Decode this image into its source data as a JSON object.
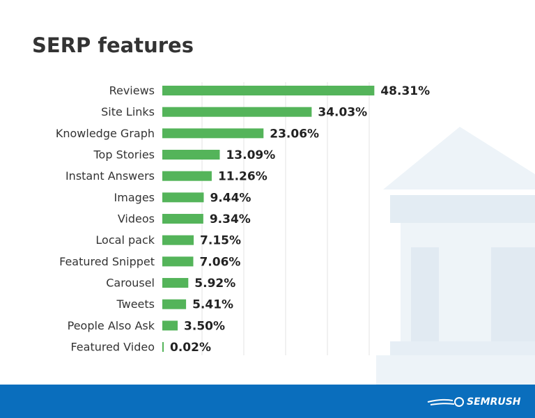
{
  "chart_data": {
    "type": "bar",
    "orientation": "horizontal",
    "title": "SERP features",
    "categories": [
      "Reviews",
      "Site Links",
      "Knowledge Graph",
      "Top Stories",
      "Instant Answers",
      "Images",
      "Videos",
      "Local pack",
      "Featured Snippet",
      "Carousel",
      "Tweets",
      "People Also Ask",
      "Featured Video"
    ],
    "values": [
      48.31,
      34.03,
      23.06,
      13.09,
      11.26,
      9.44,
      9.34,
      7.15,
      7.06,
      5.92,
      5.41,
      3.5,
      0.02
    ],
    "value_labels": [
      "48.31%",
      "34.03%",
      "23.06%",
      "13.09%",
      "11.26%",
      "9.44%",
      "9.34%",
      "7.15%",
      "7.06%",
      "5.92%",
      "5.41%",
      "3.50%",
      "0.02%"
    ],
    "color": "#54b45a",
    "xlim": [
      0,
      50
    ]
  },
  "footer": {
    "brand": "SEMRUSH"
  }
}
